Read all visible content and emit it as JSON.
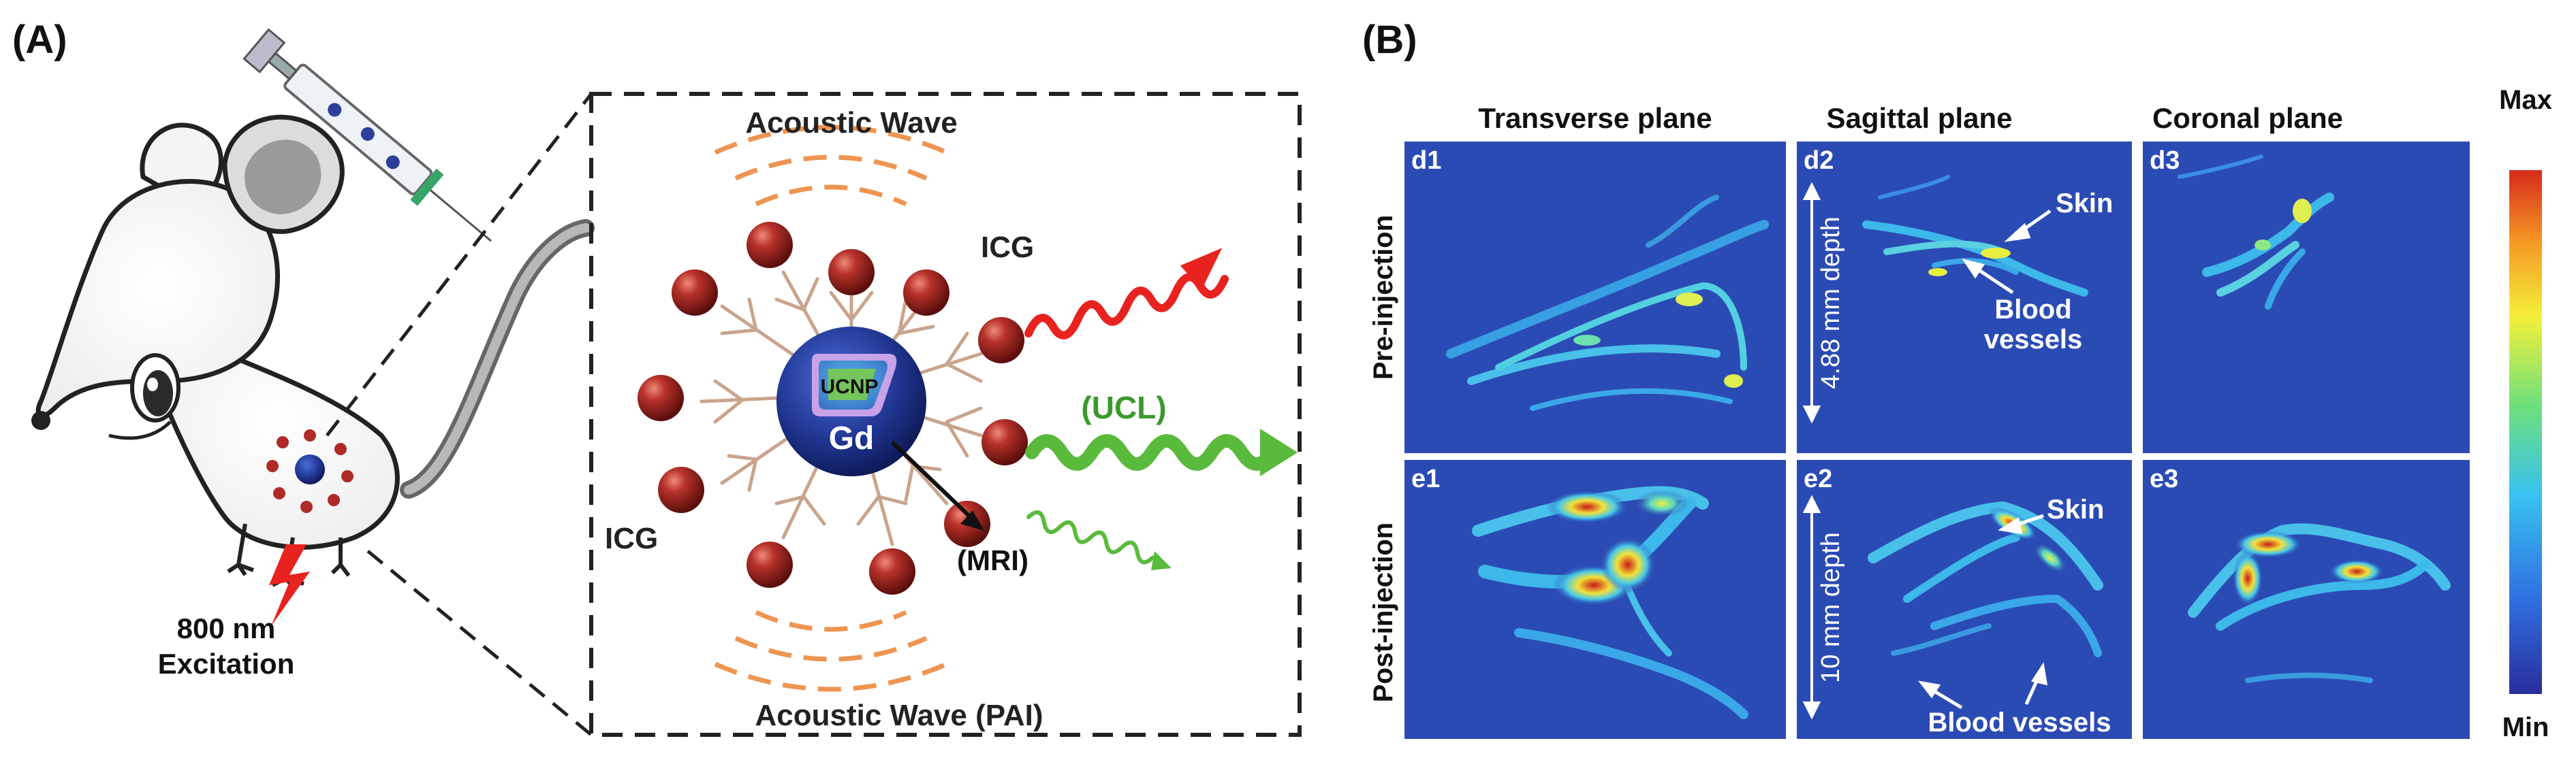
{
  "panelA": {
    "label": "(A)",
    "excitation_wavelength": "800 nm",
    "excitation_word": "Excitation",
    "acoustic_wave_top": "Acoustic Wave",
    "acoustic_wave_bottom": "Acoustic Wave (PAI)",
    "icg_top": "ICG",
    "icg_left": "ICG",
    "ucnp": "UCNP",
    "gd": "Gd",
    "ucl": "(UCL)",
    "mri": "(MRI)"
  },
  "panelB": {
    "label": "(B)",
    "columns": [
      "Transverse plane",
      "Sagittal plane",
      "Coronal plane"
    ],
    "rows": [
      "Pre-injection",
      "Post-injection"
    ],
    "tiles": {
      "d1": "d1",
      "d2": "d2",
      "d3": "d3",
      "e1": "e1",
      "e2": "e2",
      "e3": "e3"
    },
    "depth_pre": "4.88 mm depth",
    "depth_post": "10 mm depth",
    "skin_pre": "Skin",
    "skin_post": "Skin",
    "blood_pre_1": "Blood",
    "blood_pre_2": "vessels",
    "blood_post": "Blood vessels",
    "colorbar_max": "Max",
    "colorbar_min": "Min",
    "colors": {
      "background_blue": "#2b4bb4",
      "colorbar_stops": [
        "#2a2d9c",
        "#2f6fe0",
        "#38c2f0",
        "#6de07a",
        "#f4f03a",
        "#f59a24",
        "#d62a1a"
      ]
    }
  }
}
